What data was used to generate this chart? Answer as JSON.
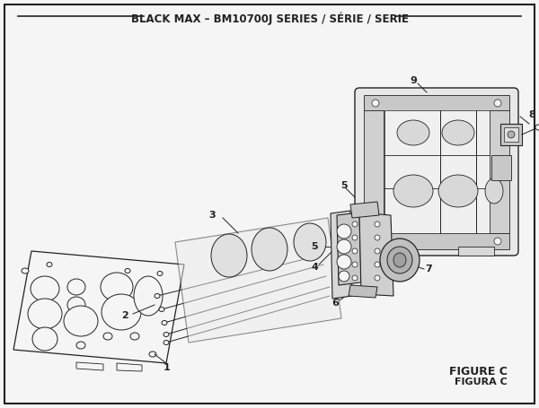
{
  "title": "BLACK MAX – BM10700J SERIES / SÉRIE / SERIE",
  "figure_label": "FIGURE C",
  "figura_label": "FIGURA C",
  "bg_color": "#f5f5f5",
  "border_color": "#222222",
  "line_color": "#222222",
  "title_fontsize": 8.5,
  "label_fontsize": 8,
  "figure_label_fontsize": 9
}
